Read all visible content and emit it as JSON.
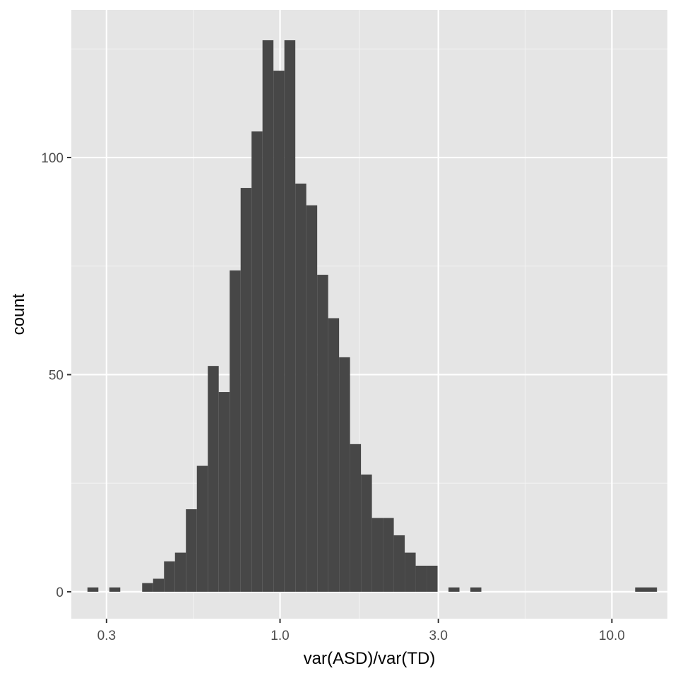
{
  "chart_data": {
    "type": "bar",
    "xlabel": "var(ASD)/var(TD)",
    "ylabel": "count",
    "x_scale": "log10",
    "xlim": [
      0.235,
      14.7
    ],
    "ylim": [
      -6.2,
      134
    ],
    "x_ticks": [
      {
        "value": 0.3,
        "label": "0.3"
      },
      {
        "value": 1.0,
        "label": "1.0"
      },
      {
        "value": 3.0,
        "label": "3.0"
      },
      {
        "value": 10.0,
        "label": "10.0"
      }
    ],
    "x_minor_ticks": [
      0.5477,
      1.7321,
      5.4772
    ],
    "y_ticks": [
      {
        "value": 0,
        "label": "0"
      },
      {
        "value": 50,
        "label": "50"
      },
      {
        "value": 100,
        "label": "100"
      }
    ],
    "y_minor_ticks": [
      25,
      75,
      125
    ],
    "grid": true,
    "bar_color": "#474747",
    "panel_color": "#e5e5e5",
    "bins": [
      {
        "x0": 0.2628,
        "x1": 0.2835,
        "count": 1
      },
      {
        "x0": 0.2835,
        "x1": 0.3059,
        "count": 0
      },
      {
        "x0": 0.3059,
        "x1": 0.33,
        "count": 1
      },
      {
        "x0": 0.33,
        "x1": 0.356,
        "count": 0
      },
      {
        "x0": 0.356,
        "x1": 0.3841,
        "count": 0
      },
      {
        "x0": 0.3841,
        "x1": 0.4144,
        "count": 2
      },
      {
        "x0": 0.4144,
        "x1": 0.4471,
        "count": 3
      },
      {
        "x0": 0.4471,
        "x1": 0.4824,
        "count": 7
      },
      {
        "x0": 0.4824,
        "x1": 0.5204,
        "count": 9
      },
      {
        "x0": 0.5204,
        "x1": 0.5615,
        "count": 19
      },
      {
        "x0": 0.5615,
        "x1": 0.6058,
        "count": 29
      },
      {
        "x0": 0.6058,
        "x1": 0.6535,
        "count": 52
      },
      {
        "x0": 0.6535,
        "x1": 0.7051,
        "count": 46
      },
      {
        "x0": 0.7051,
        "x1": 0.7607,
        "count": 74
      },
      {
        "x0": 0.7607,
        "x1": 0.8207,
        "count": 93
      },
      {
        "x0": 0.8207,
        "x1": 0.8854,
        "count": 106
      },
      {
        "x0": 0.8854,
        "x1": 0.9553,
        "count": 127
      },
      {
        "x0": 0.9553,
        "x1": 1.0306,
        "count": 120
      },
      {
        "x0": 1.0306,
        "x1": 1.1119,
        "count": 127
      },
      {
        "x0": 1.1119,
        "x1": 1.1996,
        "count": 94
      },
      {
        "x0": 1.1996,
        "x1": 1.2942,
        "count": 89
      },
      {
        "x0": 1.2942,
        "x1": 1.3963,
        "count": 73
      },
      {
        "x0": 1.3963,
        "x1": 1.5064,
        "count": 63
      },
      {
        "x0": 1.5064,
        "x1": 1.6252,
        "count": 54
      },
      {
        "x0": 1.6252,
        "x1": 1.7534,
        "count": 34
      },
      {
        "x0": 1.7534,
        "x1": 1.8917,
        "count": 27
      },
      {
        "x0": 1.8917,
        "x1": 2.0409,
        "count": 17
      },
      {
        "x0": 2.0409,
        "x1": 2.2019,
        "count": 17
      },
      {
        "x0": 2.2019,
        "x1": 2.3756,
        "count": 13
      },
      {
        "x0": 2.3756,
        "x1": 2.5629,
        "count": 9
      },
      {
        "x0": 2.5629,
        "x1": 2.7651,
        "count": 6
      },
      {
        "x0": 2.7651,
        "x1": 2.9832,
        "count": 6
      },
      {
        "x0": 2.9832,
        "x1": 3.2185,
        "count": 0
      },
      {
        "x0": 3.2185,
        "x1": 3.4724,
        "count": 1
      },
      {
        "x0": 3.4724,
        "x1": 3.7463,
        "count": 0
      },
      {
        "x0": 3.7463,
        "x1": 4.0418,
        "count": 1
      },
      {
        "x0": 11.7512,
        "x1": 13.671,
        "count": 1
      }
    ]
  }
}
